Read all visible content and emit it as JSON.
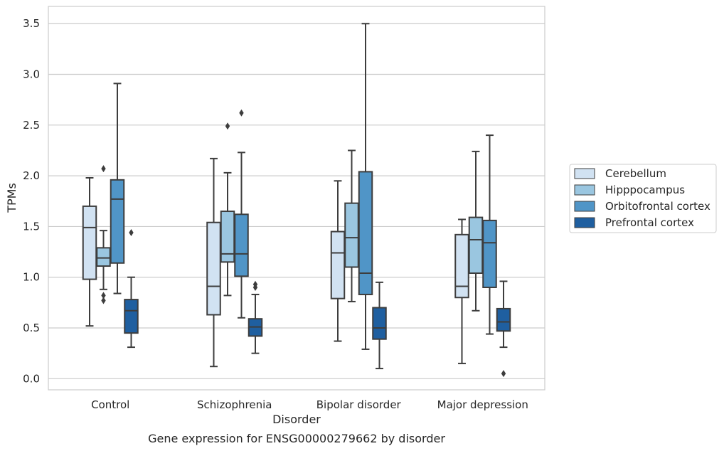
{
  "chart_data": {
    "type": "box",
    "caption": "Gene expression for ENSG00000279662 by disorder",
    "xlabel": "Disorder",
    "ylabel": "TPMs",
    "ylim": [
      -0.11,
      3.67
    ],
    "yticks": [
      "0.0",
      "0.5",
      "1.0",
      "1.5",
      "2.0",
      "2.5",
      "3.0",
      "3.5"
    ],
    "grid": "horizontal",
    "legend_position": "right",
    "categories": [
      "Control",
      "Schizophrenia",
      "Bipolar disorder",
      "Major depression"
    ],
    "series": [
      {
        "name": "Cerebellum",
        "color": "#d1e2f2",
        "boxes": [
          {
            "whisker_low": 0.52,
            "q1": 0.98,
            "median": 1.49,
            "q3": 1.7,
            "whisker_high": 1.98,
            "outliers": []
          },
          {
            "whisker_low": 0.12,
            "q1": 0.63,
            "median": 0.91,
            "q3": 1.54,
            "whisker_high": 2.17,
            "outliers": []
          },
          {
            "whisker_low": 0.37,
            "q1": 0.79,
            "median": 1.24,
            "q3": 1.45,
            "whisker_high": 1.95,
            "outliers": []
          },
          {
            "whisker_low": 0.15,
            "q1": 0.8,
            "median": 0.91,
            "q3": 1.42,
            "whisker_high": 1.57,
            "outliers": []
          }
        ]
      },
      {
        "name": "Hipppocampus",
        "color": "#9ac6e0",
        "boxes": [
          {
            "whisker_low": 0.88,
            "q1": 1.11,
            "median": 1.19,
            "q3": 1.29,
            "whisker_high": 1.46,
            "outliers": [
              2.07,
              0.82,
              0.77
            ]
          },
          {
            "whisker_low": 0.82,
            "q1": 1.15,
            "median": 1.23,
            "q3": 1.65,
            "whisker_high": 2.03,
            "outliers": [
              2.49
            ]
          },
          {
            "whisker_low": 0.76,
            "q1": 1.1,
            "median": 1.39,
            "q3": 1.73,
            "whisker_high": 2.25,
            "outliers": []
          },
          {
            "whisker_low": 0.67,
            "q1": 1.04,
            "median": 1.37,
            "q3": 1.59,
            "whisker_high": 2.24,
            "outliers": []
          }
        ]
      },
      {
        "name": "Orbitofrontal cortex",
        "color": "#5095c7",
        "boxes": [
          {
            "whisker_low": 0.84,
            "q1": 1.14,
            "median": 1.77,
            "q3": 1.96,
            "whisker_high": 2.91,
            "outliers": []
          },
          {
            "whisker_low": 0.6,
            "q1": 1.01,
            "median": 1.23,
            "q3": 1.62,
            "whisker_high": 2.23,
            "outliers": [
              2.62
            ]
          },
          {
            "whisker_low": 0.29,
            "q1": 0.83,
            "median": 1.04,
            "q3": 2.04,
            "whisker_high": 3.5,
            "outliers": []
          },
          {
            "whisker_low": 0.44,
            "q1": 0.9,
            "median": 1.34,
            "q3": 1.56,
            "whisker_high": 2.4,
            "outliers": []
          }
        ]
      },
      {
        "name": "Prefrontal cortex",
        "color": "#1f5fa0",
        "boxes": [
          {
            "whisker_low": 0.31,
            "q1": 0.45,
            "median": 0.67,
            "q3": 0.78,
            "whisker_high": 1.0,
            "outliers": [
              1.44
            ]
          },
          {
            "whisker_low": 0.25,
            "q1": 0.42,
            "median": 0.51,
            "q3": 0.59,
            "whisker_high": 0.83,
            "outliers": [
              0.93,
              0.9
            ]
          },
          {
            "whisker_low": 0.1,
            "q1": 0.39,
            "median": 0.5,
            "q3": 0.7,
            "whisker_high": 0.95,
            "outliers": []
          },
          {
            "whisker_low": 0.31,
            "q1": 0.47,
            "median": 0.56,
            "q3": 0.69,
            "whisker_high": 0.96,
            "outliers": [
              0.05
            ]
          }
        ]
      }
    ]
  }
}
